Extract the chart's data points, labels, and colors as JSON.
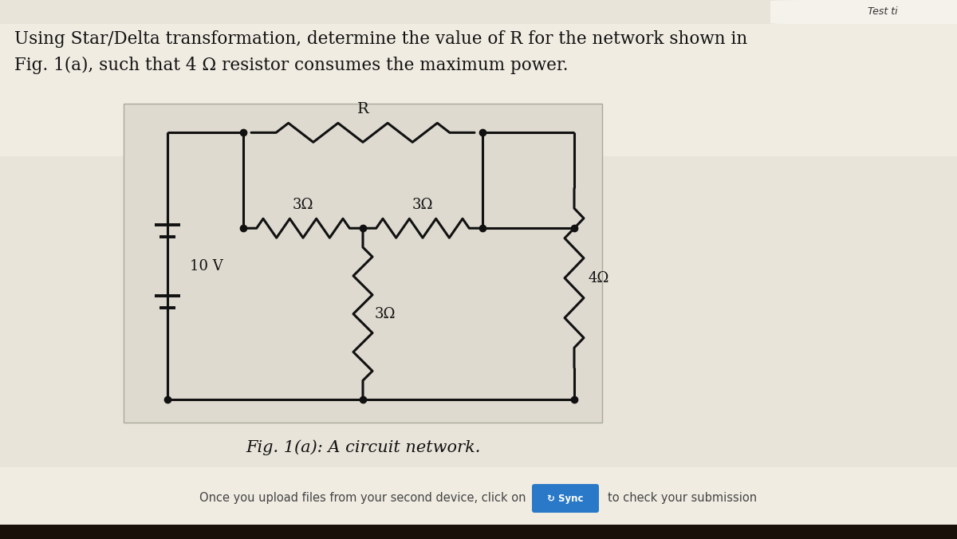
{
  "title_line1": "Using Star/Delta transformation, determine the value of R for the network shown in",
  "title_line2": "Fig. 1(a), such that 4 Ω resistor consumes the maximum power.",
  "caption": "Fig. 1(a): A circuit network.",
  "footer_pre": "Once you upload files from your second device, click on",
  "sync_label": "↻ Sync",
  "footer_post": "to check your submission",
  "top_tab_text": "Test ti",
  "bg_main": "#e8e4da",
  "bg_title_area": "#f0ece2",
  "circuit_bg": "#dedad0",
  "top_nav_color": "#1a2a5e",
  "top_tab_bg": "#f5f2ec",
  "footer_bg": "#f0ece2",
  "bottom_dark": "#1a100a",
  "sync_btn_color": "#2979c8",
  "wire_color": "#111111",
  "node_color": "#111111",
  "title_fontsize": 15.5,
  "caption_fontsize": 15,
  "label_fontsize": 13,
  "footer_fontsize": 10.5
}
